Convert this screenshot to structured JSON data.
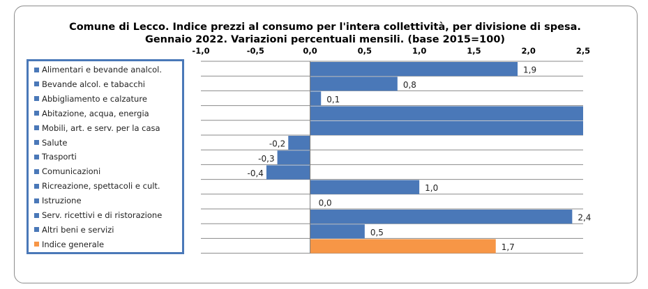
{
  "title_line1": "Comune di Lecco. Indice prezzi al consumo per l'intera collettività, per divisione di spesa.",
  "title_line2": "Gennaio 2022. Variazioni percentuali mensili. (base 2015=100)",
  "colors": {
    "division": "#4a78b8",
    "general": "#f79646"
  },
  "chart_data": {
    "type": "bar",
    "orientation": "horizontal",
    "title": "Comune di Lecco. Indice prezzi al consumo per l'intera collettività, per divisione di spesa. Gennaio 2022. Variazioni percentuali mensili. (base 2015=100)",
    "xlim": [
      -1.0,
      2.5
    ],
    "ticks": [
      -1.0,
      -0.5,
      0.0,
      0.5,
      1.0,
      1.5,
      2.0,
      2.5
    ],
    "tick_labels": [
      "-1,0",
      "-0,5",
      "0,0",
      "0,5",
      "1,0",
      "1,5",
      "2,0",
      "2,5"
    ],
    "grid": true,
    "legend_position": "left",
    "categories": [
      "Alimentari e bevande analcol.",
      "Bevande alcol. e tabacchi",
      "Abbigliamento e calzature",
      "Abitazione, acqua, energia",
      "Mobili, art. e serv. per la casa",
      "Salute",
      "Trasporti",
      "Comunicazioni",
      "Ricreazione, spettacoli e cult.",
      "Istruzione",
      "Serv. ricettivi e di ristorazione",
      "Altri beni e servizi",
      "Indice generale"
    ],
    "values": [
      1.9,
      0.8,
      0.1,
      2.5,
      2.5,
      -0.2,
      -0.3,
      -0.4,
      1.0,
      0.0,
      2.4,
      0.5,
      1.7
    ],
    "labels": [
      "1,9",
      "0,8",
      "0,1",
      "",
      "",
      "-0,2",
      "-0,3",
      "-0,4",
      "1,0",
      "0,0",
      "2,4",
      "0,5",
      "1,7"
    ],
    "series_type": [
      "division",
      "division",
      "division",
      "division",
      "division",
      "division",
      "division",
      "division",
      "division",
      "division",
      "division",
      "division",
      "general"
    ]
  }
}
